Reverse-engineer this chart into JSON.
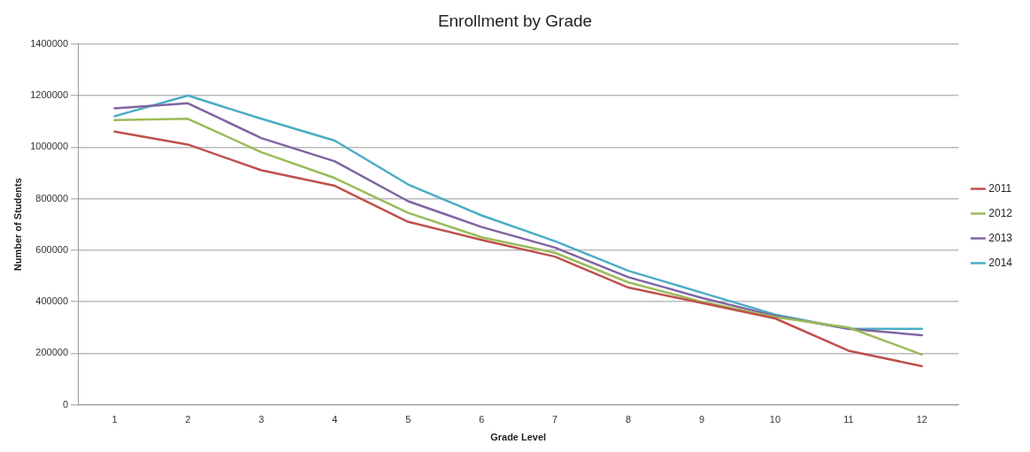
{
  "chart_data": {
    "type": "line",
    "title": "Enrollment by Grade",
    "xlabel": "Grade Level",
    "ylabel": "Number of Students",
    "categories": [
      "1",
      "2",
      "3",
      "4",
      "5",
      "6",
      "7",
      "8",
      "9",
      "10",
      "11",
      "12"
    ],
    "series": [
      {
        "name": "2011",
        "color": "#c0504d",
        "values": [
          1060000,
          1010000,
          910000,
          850000,
          710000,
          640000,
          575000,
          455000,
          395000,
          335000,
          210000,
          150000
        ]
      },
      {
        "name": "2012",
        "color": "#9bbb59",
        "values": [
          1105000,
          1110000,
          980000,
          880000,
          745000,
          650000,
          590000,
          475000,
          400000,
          340000,
          300000,
          195000
        ]
      },
      {
        "name": "2013",
        "color": "#8064a2",
        "values": [
          1150000,
          1170000,
          1035000,
          945000,
          790000,
          690000,
          610000,
          495000,
          415000,
          345000,
          295000,
          270000
        ]
      },
      {
        "name": "2014",
        "color": "#4bacc6",
        "values": [
          1120000,
          1200000,
          1110000,
          1025000,
          855000,
          735000,
          635000,
          520000,
          435000,
          350000,
          295000,
          295000
        ]
      }
    ],
    "ylim": [
      0,
      1400000
    ],
    "yticks": [
      0,
      200000,
      400000,
      600000,
      800000,
      1000000,
      1200000,
      1400000
    ],
    "grid": "y",
    "legend": "right",
    "marker": "none",
    "line_style": "solid"
  }
}
